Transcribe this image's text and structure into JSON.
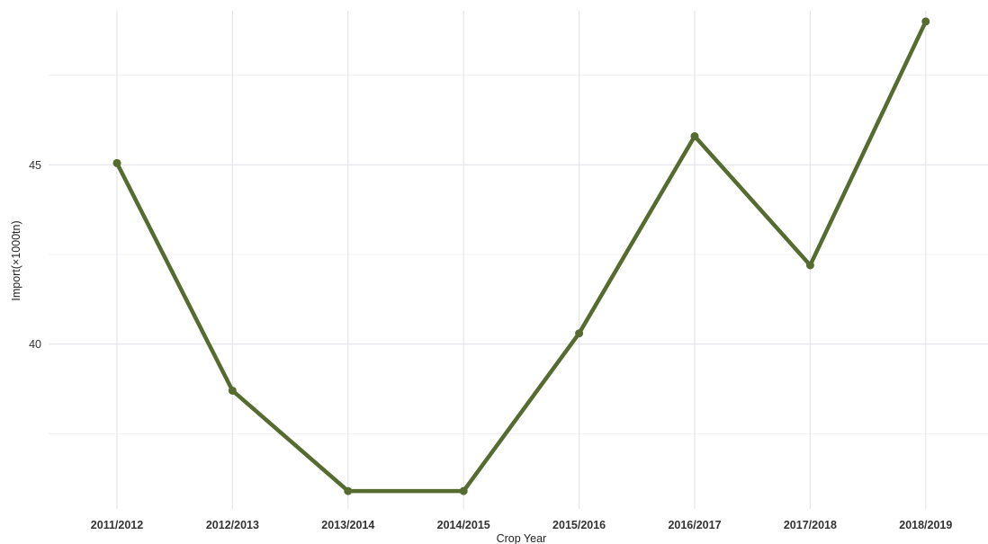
{
  "chart_data": {
    "type": "line",
    "title": "",
    "xlabel": "Crop Year",
    "ylabel": "Import(×1000tn)",
    "categories": [
      "2011/2012",
      "2012/2013",
      "2013/2014",
      "2014/2015",
      "2015/2016",
      "2016/2017",
      "2017/2018",
      "2018/2019"
    ],
    "series": [
      {
        "values": [
          45.05,
          38.7,
          35.9,
          35.9,
          40.3,
          45.8,
          42.2,
          49.0
        ]
      }
    ],
    "ylim": [
      35.4,
      49.6
    ],
    "yticks": [
      40,
      45
    ],
    "ytick_labels": [
      "40",
      "45"
    ],
    "line_color": "#556b2f",
    "grid": true,
    "legend": "none"
  }
}
